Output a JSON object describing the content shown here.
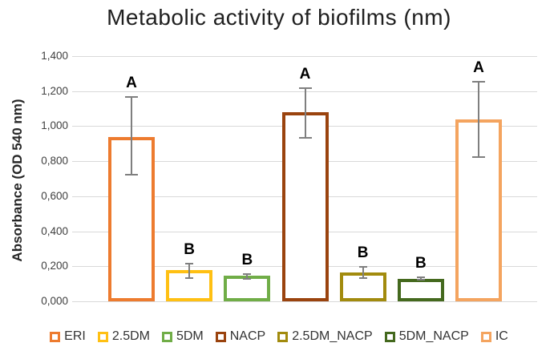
{
  "title": "Metabolic activity of biofilms (nm)",
  "y_axis_title": "Absorbance (OD 540 nm)",
  "chart_data": {
    "type": "bar",
    "title": "Metabolic activity of biofilms (nm)",
    "xlabel": "",
    "ylabel": "Absorbance (OD 540 nm)",
    "categories": [
      "ERI",
      "2.5DM",
      "5DM",
      "NACP",
      "2.5DM_NACP",
      "5DM_NACP",
      "IC"
    ],
    "values": [
      0.94,
      0.18,
      0.145,
      1.08,
      0.165,
      0.13,
      1.04
    ],
    "error_low": [
      0.72,
      0.13,
      0.125,
      0.93,
      0.13,
      0.12,
      0.82
    ],
    "error_high": [
      1.17,
      0.22,
      0.16,
      1.22,
      0.2,
      0.14,
      1.26
    ],
    "significance_letters": [
      "A",
      "B",
      "B",
      "A",
      "B",
      "B",
      "A"
    ],
    "bar_fill": "#ffffff",
    "bar_colors": [
      "#ED7B2F",
      "#FFC013",
      "#70AD47",
      "#9A430E",
      "#A28B0E",
      "#44691E",
      "#F4A45F"
    ],
    "ylim": [
      0,
      1.4
    ],
    "ytick_values": [
      0,
      0.2,
      0.4,
      0.6,
      0.8,
      1.0,
      1.2,
      1.4
    ],
    "ytick_labels": [
      "0,000",
      "0,200",
      "0,400",
      "0,600",
      "0,800",
      "1,000",
      "1,200",
      "1,400"
    ],
    "grid": true,
    "gridline_color": "#D9D9D9",
    "error_bar_color": "#7F7F7F",
    "legend_position": "bottom"
  },
  "legend": {
    "items": [
      {
        "label": "ERI",
        "color": "#ED7B2F"
      },
      {
        "label": "2.5DM",
        "color": "#FFC013"
      },
      {
        "label": "5DM",
        "color": "#70AD47"
      },
      {
        "label": "NACP",
        "color": "#9A430E"
      },
      {
        "label": "2.5DM_NACP",
        "color": "#A28B0E"
      },
      {
        "label": "5DM_NACP",
        "color": "#44691E"
      },
      {
        "label": "IC",
        "color": "#F4A45F"
      }
    ]
  }
}
